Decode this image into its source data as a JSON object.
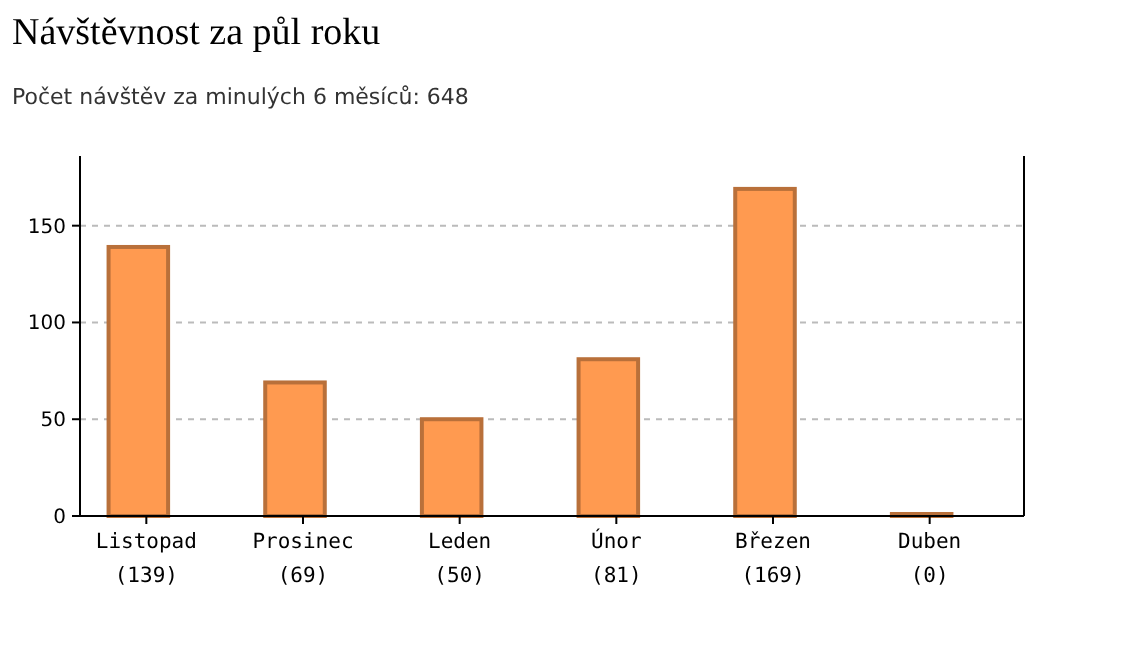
{
  "chart_data": {
    "type": "bar",
    "title": "Návštěvnost za půl roku",
    "subtitle": "Počet návštěv za minulých 6 měsíců: 648",
    "categories": [
      "Listopad",
      "Prosinec",
      "Leden",
      "Únor",
      "Březen",
      "Duben"
    ],
    "values": [
      139,
      69,
      50,
      81,
      169,
      0
    ],
    "value_labels": [
      "(139)",
      "(69)",
      "(50)",
      "(81)",
      "(169)",
      "(0)"
    ],
    "color": "#ff9a50",
    "ylim": [
      0,
      186
    ],
    "yticks": [
      0,
      50,
      100,
      150
    ],
    "grid": "y"
  }
}
